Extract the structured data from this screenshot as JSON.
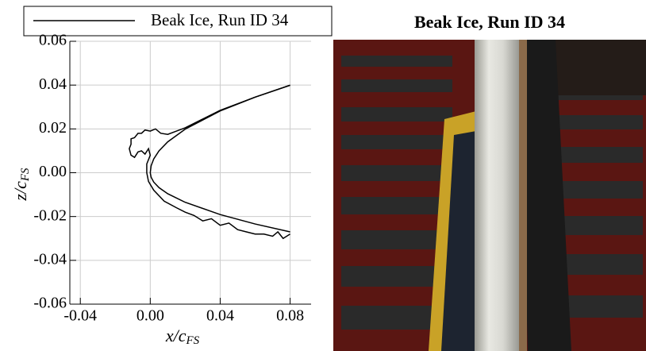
{
  "chart_data": {
    "type": "line",
    "xlabel": {
      "text": "x/c",
      "sub": "FS"
    },
    "ylabel": {
      "text": "z/c",
      "sub": "FS"
    },
    "xlim": [
      -0.046,
      0.092
    ],
    "ylim": [
      -0.06,
      0.06
    ],
    "xticks": [
      -0.04,
      {
        "value": 0,
        "label": "0.00"
      },
      0.04,
      0.08
    ],
    "yticks": [
      -0.06,
      -0.04,
      -0.02,
      {
        "value": 0,
        "label": "0.00"
      },
      0.02,
      0.04,
      0.06
    ],
    "grid": true,
    "legend": "top",
    "series": [
      {
        "name": "Beak Ice, Run ID 34",
        "color": "#000000",
        "x": [
          0.08,
          0.06,
          0.04,
          0.03,
          0.02,
          0.015,
          0.01,
          0.006,
          0.003,
          0.0,
          -0.003,
          -0.005,
          -0.007,
          -0.009,
          -0.011,
          -0.011,
          -0.012,
          -0.011,
          -0.009,
          -0.007,
          -0.005,
          -0.003,
          -0.001,
          0.0,
          -0.002,
          -0.002,
          -0.001,
          0.002,
          0.008,
          0.015,
          0.02,
          0.025,
          0.03,
          0.035,
          0.04,
          0.045,
          0.05,
          0.055,
          0.06,
          0.065,
          0.07,
          0.073,
          0.076,
          0.08
        ],
        "values": [
          0.04,
          0.0345,
          0.0285,
          0.0245,
          0.0205,
          0.019,
          0.0175,
          0.018,
          0.02,
          0.019,
          0.0195,
          0.018,
          0.018,
          0.016,
          0.0155,
          0.013,
          0.011,
          0.008,
          0.007,
          0.0095,
          0.01,
          0.0085,
          0.011,
          0.008,
          0.004,
          0.0,
          -0.004,
          -0.008,
          -0.013,
          -0.016,
          -0.018,
          -0.0195,
          -0.022,
          -0.021,
          -0.024,
          -0.023,
          -0.026,
          -0.027,
          -0.028,
          -0.028,
          -0.029,
          -0.027,
          -0.03,
          -0.028
        ]
      },
      {
        "color": "#000000",
        "x": [
          0.08,
          0.06,
          0.04,
          0.02,
          0.01,
          0.005,
          0.002,
          0.0005,
          0.0,
          0.0005,
          0.002,
          0.005,
          0.01,
          0.02,
          0.04,
          0.06,
          0.08
        ],
        "values": [
          0.0399,
          0.0345,
          0.0282,
          0.0199,
          0.0141,
          0.01,
          0.0063,
          0.0032,
          0.0,
          -0.0021,
          -0.0043,
          -0.0068,
          -0.0096,
          -0.0135,
          -0.0191,
          -0.0234,
          -0.027
        ]
      }
    ]
  },
  "photo": {
    "title": "Beak Ice, Run ID 34"
  }
}
